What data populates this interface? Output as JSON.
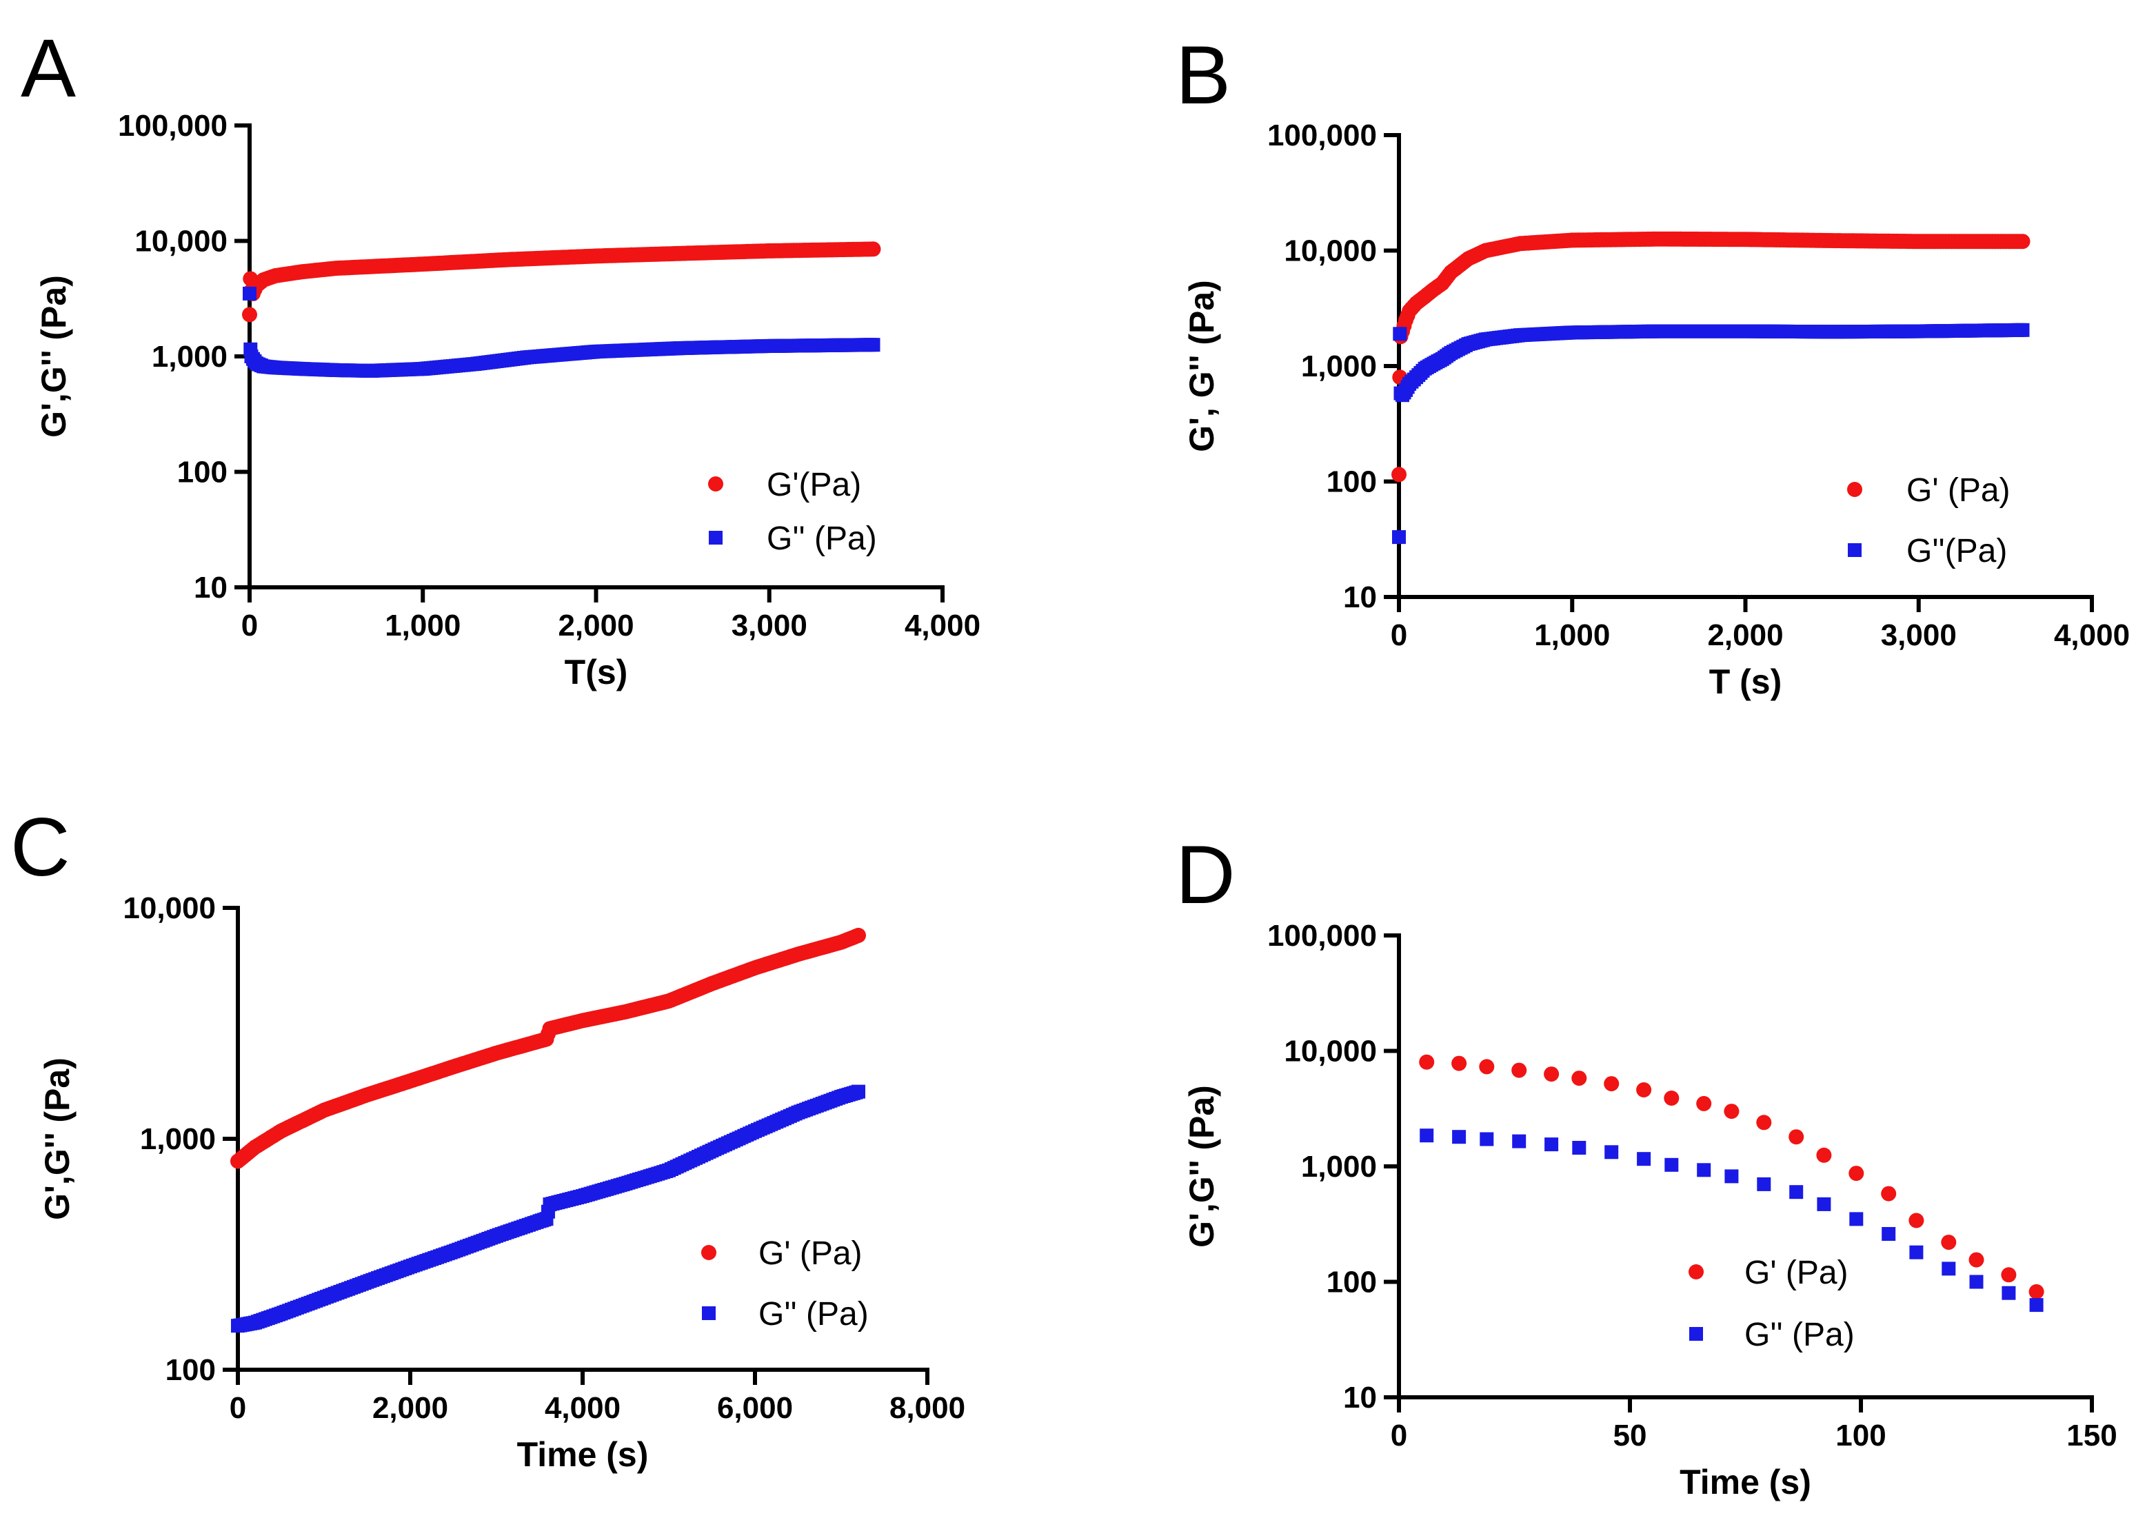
{
  "colors": {
    "g_prime": "#f01414",
    "g_double_prime": "#1a1ae6",
    "axis": "#000000"
  },
  "chart_data": [
    {
      "panel": "A",
      "type": "scatter",
      "xlabel": "T(s)",
      "ylabel": "G',G'' (Pa)",
      "xlim": [
        0,
        4000
      ],
      "ylim": [
        10,
        100000
      ],
      "yscale": "log",
      "x_ticks": [
        "0",
        "1,000",
        "2,000",
        "3,000",
        "4,000"
      ],
      "y_ticks": [
        "10",
        "100",
        "1,000",
        "10,000",
        "100,000"
      ],
      "legend": [
        "G'(Pa)",
        "G'' (Pa)"
      ],
      "legend_position": "lower-right",
      "series": [
        {
          "name": "G'(Pa)",
          "marker": "circle",
          "dense": true,
          "x": [
            0,
            5,
            10,
            20,
            40,
            80,
            150,
            300,
            500,
            1000,
            1500,
            2000,
            2500,
            3000,
            3600
          ],
          "y": [
            2300,
            4700,
            3700,
            3500,
            4100,
            4600,
            5000,
            5400,
            5800,
            6300,
            6900,
            7400,
            7800,
            8200,
            8500
          ]
        },
        {
          "name": "G'' (Pa)",
          "marker": "square",
          "dense": true,
          "x": [
            0,
            5,
            10,
            20,
            40,
            80,
            150,
            300,
            500,
            700,
            1000,
            1300,
            1600,
            2000,
            2500,
            3000,
            3600
          ],
          "y": [
            3500,
            1150,
            1000,
            950,
            870,
            820,
            800,
            780,
            760,
            750,
            780,
            860,
            980,
            1100,
            1180,
            1230,
            1260
          ]
        }
      ]
    },
    {
      "panel": "B",
      "type": "scatter",
      "xlabel": "T (s)",
      "ylabel": "G', G'' (Pa)",
      "xlim": [
        0,
        4000
      ],
      "ylim": [
        10,
        100000
      ],
      "yscale": "log",
      "x_ticks": [
        "0",
        "1,000",
        "2,000",
        "3,000",
        "4,000"
      ],
      "y_ticks": [
        "10",
        "100",
        "1,000",
        "10,000",
        "100,000"
      ],
      "legend": [
        "G' (Pa)",
        "G''(Pa)"
      ],
      "legend_position": "lower-right",
      "series": [
        {
          "name": "G' (Pa)",
          "marker": "circle",
          "dense": true,
          "x": [
            0,
            5,
            10,
            20,
            40,
            60,
            100,
            150,
            200,
            250,
            300,
            400,
            500,
            700,
            1000,
            1500,
            2000,
            2500,
            3000,
            3600
          ],
          "y": [
            115,
            800,
            1800,
            2000,
            2500,
            3000,
            3500,
            4000,
            4600,
            5200,
            6500,
            8500,
            10000,
            11500,
            12300,
            12600,
            12500,
            12200,
            12000,
            12000
          ]
        },
        {
          "name": "G''(Pa)",
          "marker": "square",
          "dense": true,
          "x": [
            0,
            5,
            10,
            20,
            40,
            60,
            100,
            150,
            200,
            250,
            300,
            400,
            500,
            700,
            1000,
            1500,
            2000,
            2500,
            3000,
            3600
          ],
          "y": [
            33,
            1900,
            580,
            560,
            620,
            700,
            800,
            950,
            1050,
            1150,
            1300,
            1550,
            1700,
            1850,
            1950,
            2000,
            2000,
            1980,
            2000,
            2050
          ]
        }
      ]
    },
    {
      "panel": "C",
      "type": "scatter",
      "xlabel": "Time (s)",
      "ylabel": "G',G'' (Pa)",
      "xlim": [
        0,
        8000
      ],
      "ylim": [
        100,
        10000
      ],
      "yscale": "log",
      "x_ticks": [
        "0",
        "2,000",
        "4,000",
        "6,000",
        "8,000"
      ],
      "y_ticks": [
        "100",
        "1,000",
        "10,000"
      ],
      "legend": [
        "G' (Pa)",
        "G'' (Pa)"
      ],
      "legend_position": "lower-right",
      "series": [
        {
          "name": "G' (Pa)",
          "marker": "circle",
          "dense": true,
          "x": [
            0,
            200,
            500,
            1000,
            1500,
            2000,
            2500,
            3000,
            3500,
            3580,
            3620,
            4000,
            4500,
            5000,
            5500,
            6000,
            6500,
            7000,
            7200
          ],
          "y": [
            800,
            920,
            1080,
            1330,
            1550,
            1780,
            2050,
            2350,
            2650,
            2700,
            3000,
            3250,
            3550,
            3950,
            4700,
            5500,
            6300,
            7100,
            7600
          ]
        },
        {
          "name": "G'' (Pa)",
          "marker": "square",
          "dense": true,
          "x": [
            0,
            200,
            500,
            1000,
            1500,
            2000,
            2500,
            3000,
            3500,
            3580,
            3620,
            4000,
            4500,
            5000,
            5500,
            6000,
            6500,
            7000,
            7200
          ],
          "y": [
            155,
            160,
            175,
            205,
            240,
            280,
            325,
            380,
            440,
            450,
            520,
            565,
            640,
            730,
            890,
            1080,
            1300,
            1520,
            1600
          ]
        }
      ]
    },
    {
      "panel": "D",
      "type": "scatter",
      "xlabel": "Time (s)",
      "ylabel": "G',G'' (Pa)",
      "xlim": [
        0,
        150
      ],
      "ylim": [
        10,
        100000
      ],
      "yscale": "log",
      "x_ticks": [
        "0",
        "50",
        "100",
        "150"
      ],
      "y_ticks": [
        "10",
        "100",
        "1,000",
        "10,000",
        "100,000"
      ],
      "legend": [
        "G' (Pa)",
        "G'' (Pa)"
      ],
      "legend_position": "lower-center",
      "series": [
        {
          "name": "G' (Pa)",
          "marker": "circle",
          "dense": false,
          "x": [
            6,
            13,
            19,
            26,
            33,
            39,
            46,
            53,
            59,
            66,
            72,
            79,
            86,
            92,
            99,
            106,
            112,
            119,
            125,
            132,
            138
          ],
          "y": [
            8000,
            7800,
            7300,
            6800,
            6300,
            5800,
            5200,
            4600,
            3900,
            3500,
            3000,
            2400,
            1800,
            1250,
            870,
            580,
            340,
            220,
            155,
            115,
            82
          ]
        },
        {
          "name": "G'' (Pa)",
          "marker": "square",
          "dense": false,
          "x": [
            6,
            13,
            19,
            26,
            33,
            39,
            46,
            53,
            59,
            66,
            72,
            79,
            86,
            92,
            99,
            106,
            112,
            119,
            125,
            132,
            138
          ],
          "y": [
            1850,
            1800,
            1720,
            1650,
            1550,
            1450,
            1330,
            1160,
            1030,
            930,
            820,
            700,
            600,
            470,
            350,
            260,
            180,
            130,
            100,
            80,
            63
          ]
        }
      ]
    }
  ]
}
